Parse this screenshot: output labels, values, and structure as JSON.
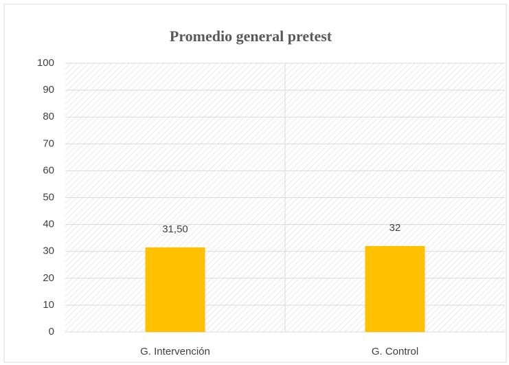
{
  "chart_data": {
    "type": "bar",
    "title": "Promedio general pretest",
    "categories": [
      "G. Intervención",
      "G. Control"
    ],
    "values": [
      31.5,
      32
    ],
    "value_labels": [
      "31,50",
      "32"
    ],
    "color": "#ffc000",
    "ylim": [
      0,
      100
    ],
    "yticks": [
      0,
      10,
      20,
      30,
      40,
      50,
      60,
      70,
      80,
      90,
      100
    ],
    "grid": true
  }
}
